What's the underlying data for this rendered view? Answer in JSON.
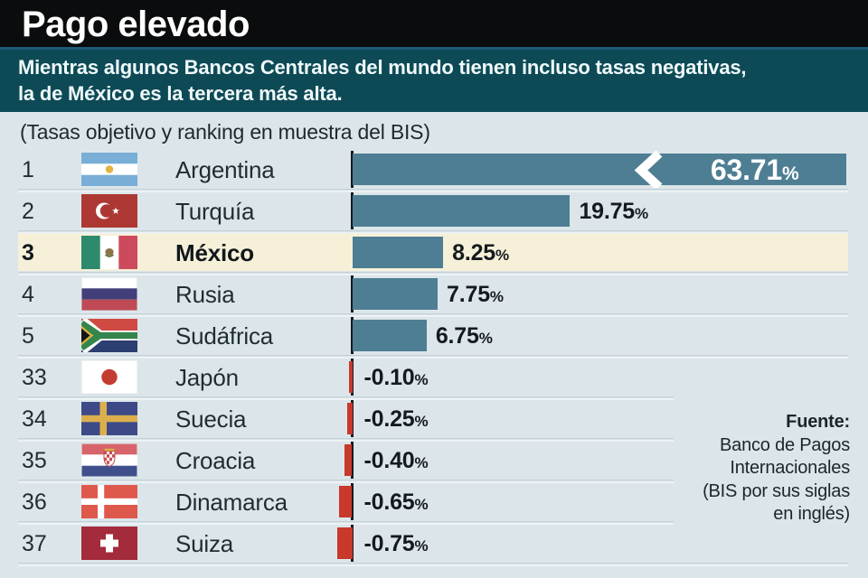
{
  "header": {
    "title": "Pago elevado"
  },
  "subtitle": {
    "line1": "Mientras algunos Bancos Centrales del mundo tienen incluso tasas negativas,",
    "line2": "la de México es la tercera más alta."
  },
  "note": "(Tasas objetivo y ranking en muestra del BIS)",
  "source": {
    "label": "Fuente:",
    "lines": [
      "Banco de Pagos",
      "Internacionales",
      "(BIS por sus siglas",
      "en inglés)"
    ]
  },
  "colors": {
    "header_bg": "#0a0c0d",
    "band_bg": "#0d4a56",
    "band_divider": "#1d5a79",
    "page_bg": "#dce6ea",
    "positive_bar": "#4e7e93",
    "negative_bar": "#c8382b",
    "highlight_row": "#f7f0d8",
    "axis": "#181a1f",
    "bar_inner_label": "#ffffff",
    "value_text": "#141b1f"
  },
  "chart_data": {
    "type": "bar",
    "orientation": "horizontal",
    "unit": "%",
    "title": "Pago elevado",
    "subtitle": "Mientras algunos Bancos Centrales del mundo tienen incluso tasas negativas, la de México es la tercera más alta.",
    "axis_note": "Barra de Argentina dibujada con corte (valor fuera de escala)",
    "legend": "none",
    "baseline": 0,
    "categories": [
      "Argentina",
      "Turquía",
      "México",
      "Rusia",
      "Sudáfrica",
      "Japón",
      "Suecia",
      "Croacia",
      "Dinamarca",
      "Suiza"
    ],
    "values": [
      63.71,
      19.75,
      8.25,
      7.75,
      6.75,
      -0.1,
      -0.25,
      -0.4,
      -0.65,
      -0.75
    ],
    "rows": [
      {
        "rank": "1",
        "country": "Argentina",
        "flag": "argentina",
        "value": 63.71,
        "label": "63.71",
        "highlight": false,
        "broken_bar": true
      },
      {
        "rank": "2",
        "country": "Turquía",
        "flag": "turkey",
        "value": 19.75,
        "label": "19.75",
        "highlight": false,
        "broken_bar": false
      },
      {
        "rank": "3",
        "country": "México",
        "flag": "mexico",
        "value": 8.25,
        "label": "8.25",
        "highlight": true,
        "broken_bar": false
      },
      {
        "rank": "4",
        "country": "Rusia",
        "flag": "russia",
        "value": 7.75,
        "label": "7.75",
        "highlight": false,
        "broken_bar": false
      },
      {
        "rank": "5",
        "country": "Sudáfrica",
        "flag": "southafrica",
        "value": 6.75,
        "label": "6.75",
        "highlight": false,
        "broken_bar": false
      },
      {
        "rank": "33",
        "country": "Japón",
        "flag": "japan",
        "value": -0.1,
        "label": "-0.10",
        "highlight": false,
        "broken_bar": false
      },
      {
        "rank": "34",
        "country": "Suecia",
        "flag": "sweden",
        "value": -0.25,
        "label": "-0.25",
        "highlight": false,
        "broken_bar": false
      },
      {
        "rank": "35",
        "country": "Croacia",
        "flag": "croatia",
        "value": -0.4,
        "label": "-0.40",
        "highlight": false,
        "broken_bar": false
      },
      {
        "rank": "36",
        "country": "Dinamarca",
        "flag": "denmark",
        "value": -0.65,
        "label": "-0.65",
        "highlight": false,
        "broken_bar": false
      },
      {
        "rank": "37",
        "country": "Suiza",
        "flag": "switzerland",
        "value": -0.75,
        "label": "-0.75",
        "highlight": false,
        "broken_bar": false
      }
    ]
  }
}
